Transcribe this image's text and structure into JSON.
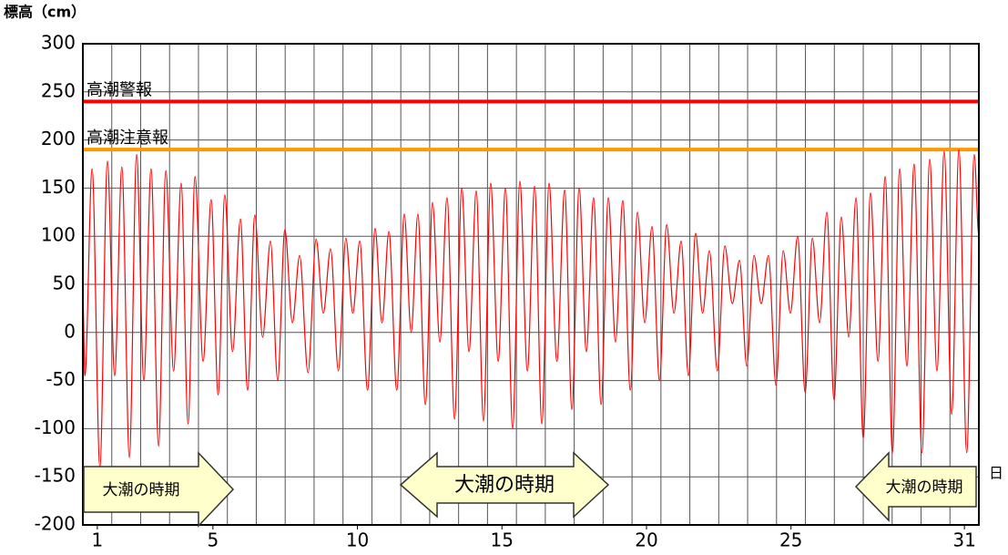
{
  "chart_data": {
    "type": "line",
    "y_label": "標高（cm）",
    "x_label": "日",
    "xlim": [
      0.5,
      31.5
    ],
    "xticks": [
      1,
      5,
      10,
      15,
      20,
      25,
      31
    ],
    "ylim": [
      -200,
      300
    ],
    "yticks": [
      -200,
      -150,
      -100,
      -50,
      0,
      50,
      100,
      150,
      200,
      250,
      300
    ],
    "grid": true,
    "reference_lines": [
      {
        "label": "高潮警報",
        "value": 240,
        "color": "#ff0000"
      },
      {
        "label": "高潮注意報",
        "value": 190,
        "color": "#ff9900"
      }
    ],
    "annotations": [
      "大潮の時期",
      "大潮の時期",
      "大潮の時期"
    ],
    "series": [
      {
        "color": "#ff0000",
        "x": [
          0.5,
          0.57,
          0.82,
          1.09,
          1.35,
          1.6,
          1.85,
          2.11,
          2.36,
          2.61,
          2.86,
          3.12,
          3.37,
          3.64,
          3.9,
          4.14,
          4.38,
          4.66,
          4.94,
          5.18,
          5.41,
          5.68,
          5.95,
          6.2,
          6.45,
          6.72,
          6.99,
          7.24,
          7.49,
          7.75,
          8.0,
          8.29,
          8.57,
          8.82,
          9.07,
          9.34,
          9.6,
          9.84,
          10.08,
          10.35,
          10.61,
          10.85,
          11.09,
          11.36,
          11.62,
          11.86,
          12.09,
          12.35,
          12.6,
          12.85,
          13.1,
          13.36,
          13.61,
          13.86,
          14.11,
          14.36,
          14.61,
          14.87,
          15.12,
          15.37,
          15.62,
          15.88,
          16.13,
          16.38,
          16.63,
          16.9,
          17.17,
          17.42,
          17.67,
          17.92,
          18.17,
          18.43,
          18.68,
          18.93,
          19.18,
          19.44,
          19.69,
          19.94,
          20.19,
          20.45,
          20.7,
          20.95,
          21.2,
          21.45,
          21.7,
          21.94,
          22.18,
          22.45,
          22.71,
          22.97,
          23.22,
          23.47,
          23.72,
          23.97,
          24.22,
          24.48,
          24.73,
          24.98,
          25.23,
          25.49,
          25.74,
          25.99,
          26.24,
          26.49,
          26.74,
          27.0,
          27.25,
          27.5,
          27.75,
          28.01,
          28.26,
          28.51,
          28.76,
          29.01,
          29.26,
          29.53,
          29.8,
          30.05,
          30.3,
          30.56,
          30.81,
          31.08,
          31.34,
          31.5
        ],
        "values": [
          35,
          -45,
          170,
          -140,
          178,
          -45,
          172,
          -130,
          185,
          -50,
          170,
          -118,
          168,
          -40,
          155,
          -95,
          162,
          -30,
          138,
          -65,
          143,
          -20,
          118,
          -60,
          122,
          -5,
          95,
          -50,
          107,
          10,
          80,
          -42,
          97,
          20,
          87,
          -40,
          98,
          20,
          95,
          -60,
          108,
          10,
          105,
          -60,
          123,
          0,
          123,
          -75,
          135,
          -10,
          140,
          -90,
          150,
          -20,
          147,
          -92,
          155,
          -30,
          150,
          -100,
          157,
          -40,
          152,
          -95,
          155,
          -30,
          148,
          -80,
          150,
          -20,
          140,
          -75,
          140,
          -10,
          137,
          -60,
          125,
          10,
          110,
          -50,
          112,
          20,
          95,
          -45,
          103,
          20,
          85,
          -40,
          90,
          30,
          75,
          -35,
          80,
          30,
          80,
          -55,
          85,
          20,
          100,
          -62,
          98,
          10,
          125,
          -70,
          120,
          -5,
          140,
          -110,
          145,
          -30,
          162,
          -125,
          170,
          -35,
          175,
          -125,
          180,
          -40,
          188,
          -85,
          190,
          -125,
          185,
          100
        ]
      }
    ]
  }
}
